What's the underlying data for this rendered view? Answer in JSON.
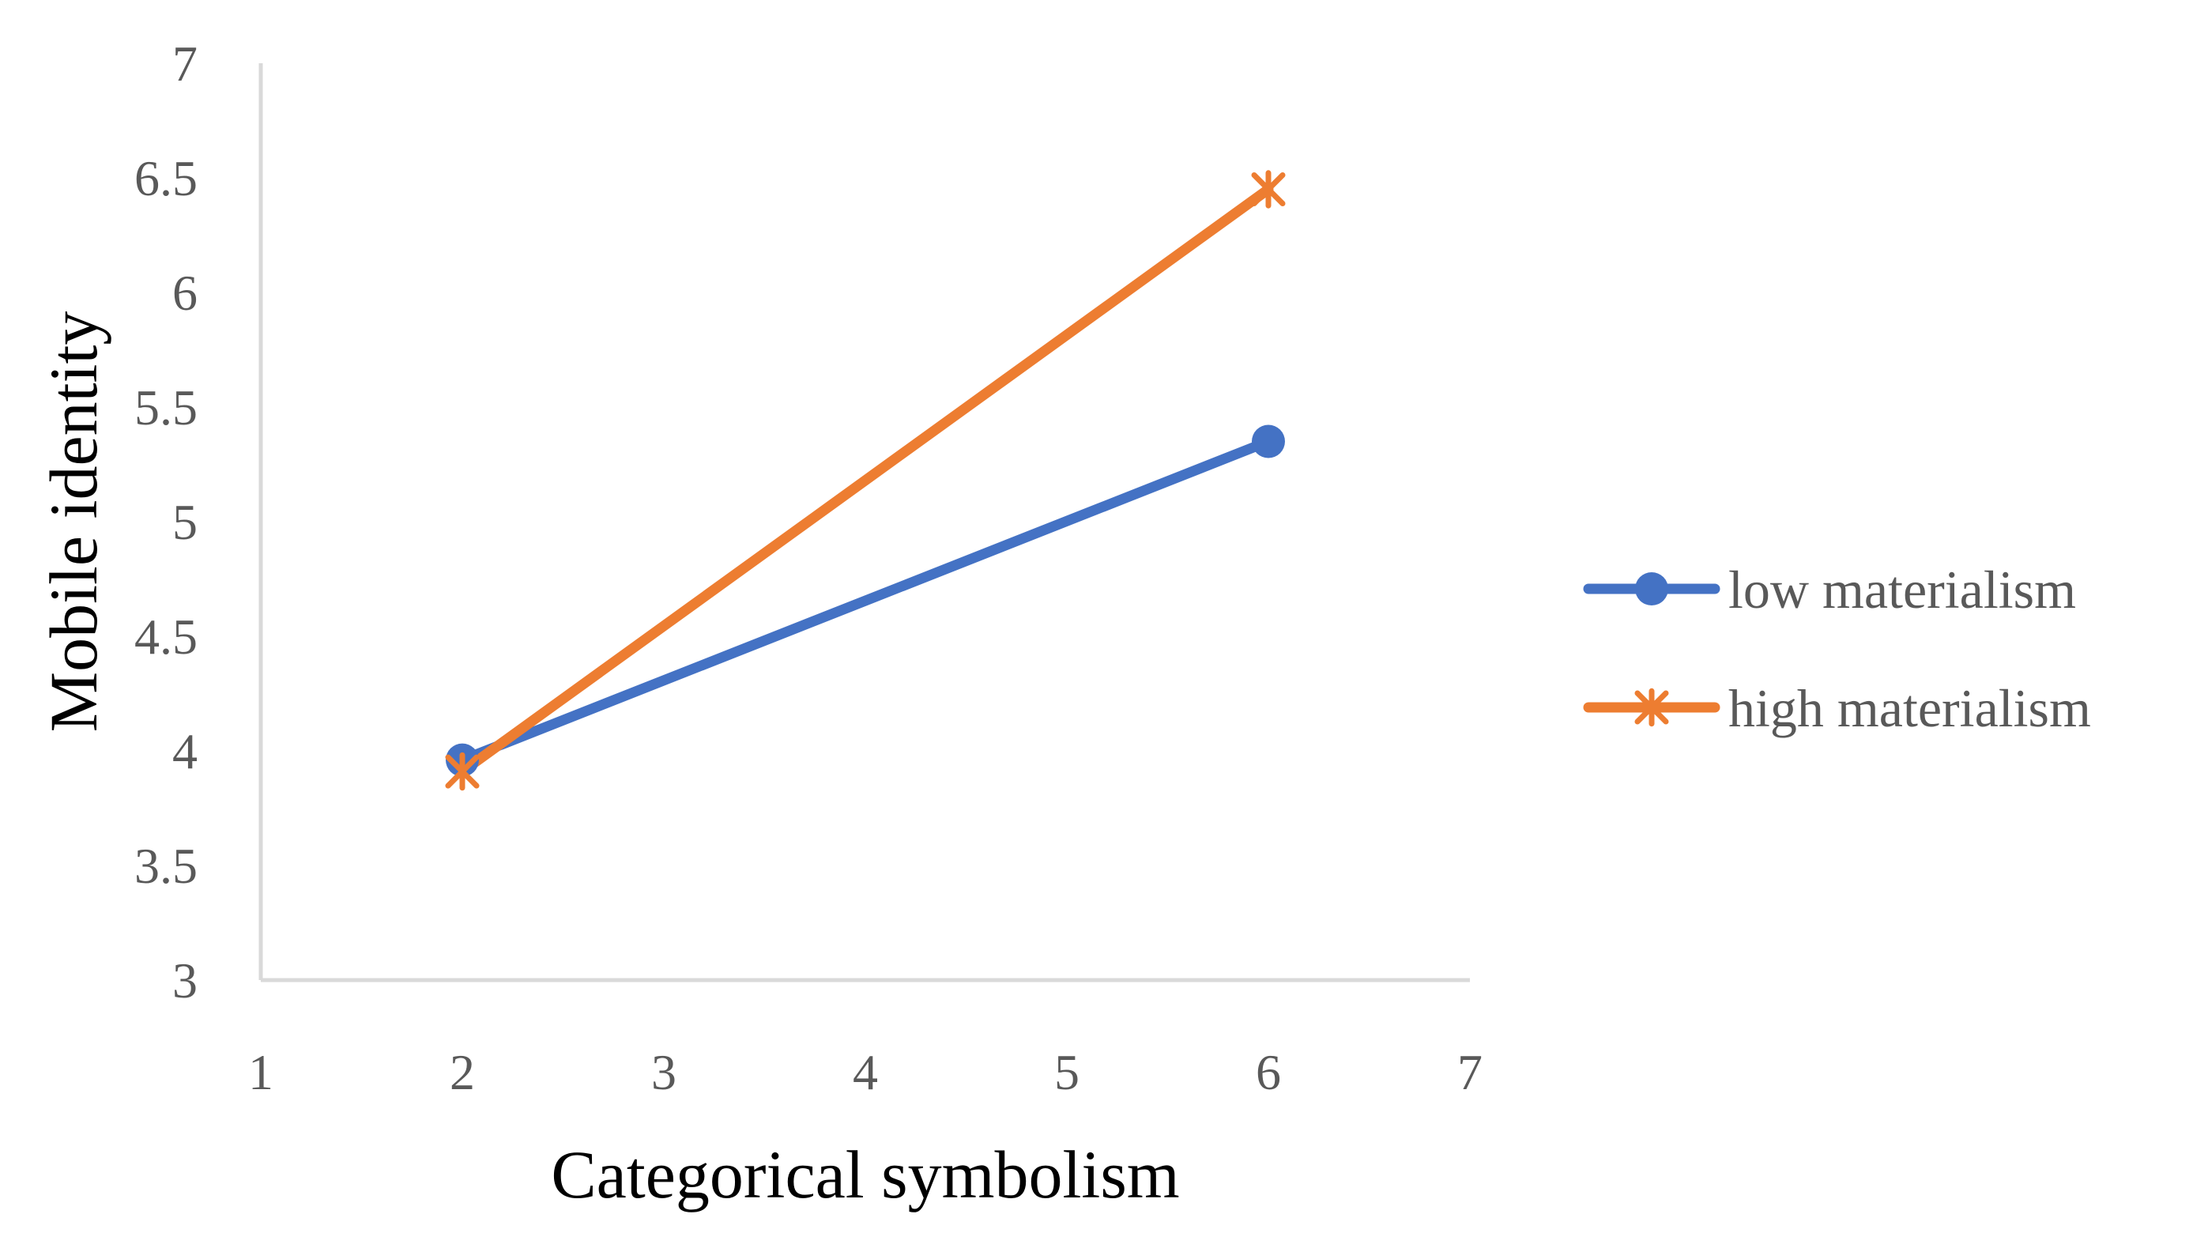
{
  "chart_data": {
    "type": "line",
    "title": "",
    "xlabel": "Categorical symbolism",
    "ylabel": "Mobile identity",
    "xlim": [
      1,
      7
    ],
    "ylim": [
      3,
      7
    ],
    "x_ticks": [
      "1",
      "2",
      "3",
      "4",
      "5",
      "6",
      "7"
    ],
    "y_ticks": [
      "3",
      "3.5",
      "4",
      "4.5",
      "5",
      "5.5",
      "6",
      "6.5",
      "7"
    ],
    "grid": false,
    "legend_position": "right",
    "series": [
      {
        "name": "low materialism",
        "color": "#4472C4",
        "marker": "circle",
        "points": [
          {
            "x": 2,
            "y": 3.96
          },
          {
            "x": 6,
            "y": 5.35
          }
        ]
      },
      {
        "name": "high materialism",
        "color": "#ED7D31",
        "marker": "star",
        "points": [
          {
            "x": 2,
            "y": 3.91
          },
          {
            "x": 6,
            "y": 6.45
          }
        ]
      }
    ]
  }
}
